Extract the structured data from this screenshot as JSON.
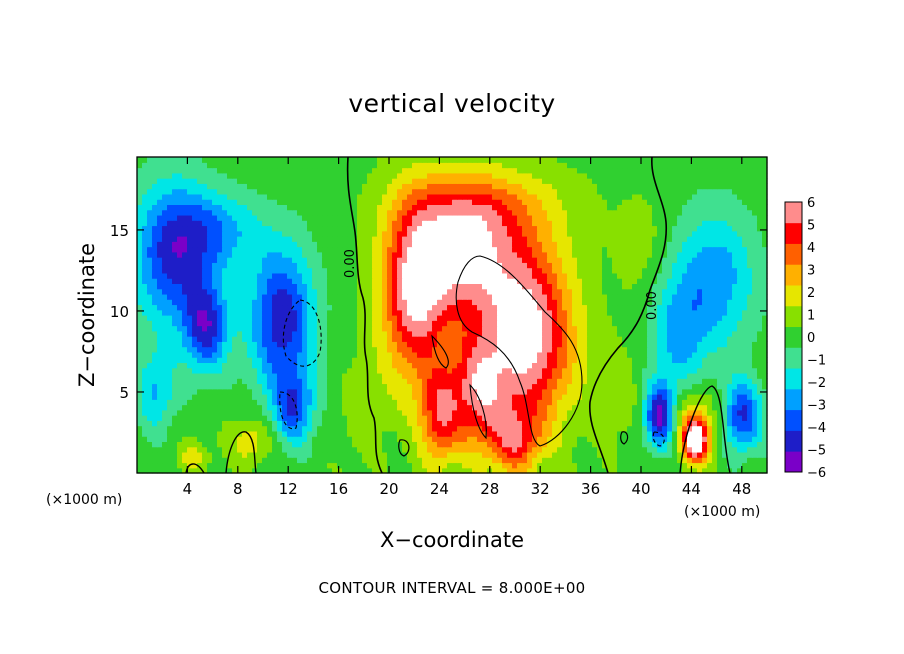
{
  "chart_data": {
    "type": "heatmap",
    "title": "vertical velocity",
    "xlabel": "X−coordinate",
    "ylabel": "Z−coordinate",
    "x_unit": "(×1000 m)",
    "x_unit_right": "(×1000 m)",
    "xlim": [
      0,
      50
    ],
    "ylim": [
      0,
      19.5
    ],
    "x_ticks": [
      4,
      8,
      12,
      16,
      20,
      24,
      28,
      32,
      36,
      40,
      44,
      48
    ],
    "x_tick_labels": [
      "4",
      "8",
      "12",
      "16",
      "20",
      "24",
      "28",
      "32",
      "36",
      "40",
      "44",
      "48"
    ],
    "y_ticks": [
      5,
      10,
      15
    ],
    "y_tick_labels": [
      "5",
      "10",
      "15"
    ],
    "colorbar": {
      "min": -6,
      "max": 6,
      "labels": [
        "6",
        "5",
        "4",
        "3",
        "2",
        "1",
        "0",
        "−1",
        "−2",
        "−3",
        "−4",
        "−5",
        "−6"
      ],
      "colors": [
        "#7a00c8",
        "#1e1ec8",
        "#0050ff",
        "#00a0ff",
        "#00e6e6",
        "#40e090",
        "#30d030",
        "#88e000",
        "#e6e600",
        "#ffb000",
        "#ff6000",
        "#ff0000",
        "#ff8c8c"
      ]
    },
    "contour_label": "0.00",
    "contour_label_2": "0.00",
    "footer": "CONTOUR INTERVAL =  8.000E+00",
    "features": [
      {
        "x": 2.8,
        "z": 13.5,
        "sx": 3.2,
        "sz": 4.5,
        "w": -4.5
      },
      {
        "x": 5.5,
        "z": 9.0,
        "sx": 1.8,
        "sz": 2.8,
        "w": -4.5
      },
      {
        "x": 11.5,
        "z": 9.5,
        "sx": 2.6,
        "sz": 4.5,
        "w": -5.0
      },
      {
        "x": 12.5,
        "z": 4.0,
        "sx": 1.6,
        "sz": 2.2,
        "w": -3.5
      },
      {
        "x": 6.5,
        "z": 15.0,
        "sx": 3.5,
        "sz": 2.5,
        "w": -2.5
      },
      {
        "x": 1.5,
        "z": 5.0,
        "sx": 1.6,
        "sz": 2.5,
        "w": -2.5
      },
      {
        "x": 22.0,
        "z": 11.0,
        "sx": 2.6,
        "sz": 5.5,
        "w": 5.5
      },
      {
        "x": 26.0,
        "z": 13.5,
        "sx": 4.0,
        "sz": 4.0,
        "w": 5.5
      },
      {
        "x": 31.0,
        "z": 8.5,
        "sx": 3.6,
        "sz": 5.5,
        "w": 6.5
      },
      {
        "x": 27.0,
        "z": 5.0,
        "sx": 2.2,
        "sz": 3.5,
        "w": 4.5
      },
      {
        "x": 24.0,
        "z": 3.5,
        "sx": 1.6,
        "sz": 3.0,
        "w": 4.0
      },
      {
        "x": 30.0,
        "z": 2.0,
        "sx": 2.0,
        "sz": 2.0,
        "w": 3.5
      },
      {
        "x": 27.5,
        "z": 16.5,
        "sx": 6.5,
        "sz": 2.4,
        "w": 2.0
      },
      {
        "x": 41.5,
        "z": 3.5,
        "sx": 1.2,
        "sz": 2.0,
        "w": -5.5
      },
      {
        "x": 46.0,
        "z": 12.0,
        "sx": 3.2,
        "sz": 4.5,
        "w": -3.0
      },
      {
        "x": 48.0,
        "z": 3.5,
        "sx": 1.6,
        "sz": 2.2,
        "w": -4.5
      },
      {
        "x": 43.0,
        "z": 8.5,
        "sx": 2.2,
        "sz": 4.0,
        "w": -2.5
      },
      {
        "x": 44.3,
        "z": 2.0,
        "sx": 1.0,
        "sz": 1.3,
        "w": 6.0
      },
      {
        "x": 44.3,
        "z": 3.2,
        "sx": 2.0,
        "sz": 2.2,
        "w": 2.5
      },
      {
        "x": 9.0,
        "z": 2.0,
        "sx": 1.6,
        "sz": 1.4,
        "w": 2.0
      },
      {
        "x": 4.5,
        "z": 1.0,
        "sx": 1.4,
        "sz": 1.0,
        "w": 1.5
      },
      {
        "x": 38.0,
        "z": 5.0,
        "sx": 1.8,
        "sz": 3.0,
        "w": 1.0
      },
      {
        "x": 18.0,
        "z": 4.0,
        "sx": 1.8,
        "sz": 3.5,
        "w": 0.8
      },
      {
        "x": 40.0,
        "z": 14.0,
        "sx": 2.0,
        "sz": 3.0,
        "w": 0.8
      }
    ]
  }
}
